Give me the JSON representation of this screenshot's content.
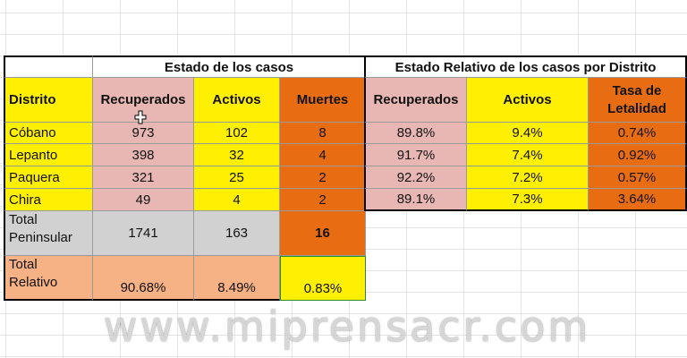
{
  "headers": {
    "group_left": "Estado de los casos",
    "group_right": "Estado Relativo de los casos por Distrito",
    "distrito": "Distrito",
    "recuperados": "Recuperados",
    "activos": "Activos",
    "muertes": "Muertes",
    "recuperados_rel": "Recuperados",
    "activos_rel": "Activos",
    "tasa_line1": "Tasa de",
    "tasa_line2": "Letalidad"
  },
  "rows": [
    {
      "distrito": "Cóbano",
      "recuperados": "973",
      "activos": "102",
      "muertes": "8",
      "rec_rel": "89.8%",
      "act_rel": "9.4%",
      "tasa": "0.74%"
    },
    {
      "distrito": "Lepanto",
      "recuperados": "398",
      "activos": "32",
      "muertes": "4",
      "rec_rel": "91.7%",
      "act_rel": "7.4%",
      "tasa": "0.92%"
    },
    {
      "distrito": "Paquera",
      "recuperados": "321",
      "activos": "25",
      "muertes": "2",
      "rec_rel": "92.2%",
      "act_rel": "7.2%",
      "tasa": "0.57%"
    },
    {
      "distrito": "Chira",
      "recuperados": "49",
      "activos": "4",
      "muertes": "2",
      "rec_rel": "89.1%",
      "act_rel": "7.3%",
      "tasa": "3.64%"
    }
  ],
  "total_peninsular": {
    "label_line1": "Total",
    "label_line2": "Peninsular",
    "recuperados": "1741",
    "activos": "163",
    "muertes": "16"
  },
  "total_relativo": {
    "label_line1": "Total",
    "label_line2": "Relativo",
    "recuperados": "90.68%",
    "activos": "8.49%",
    "muertes": "0.83%"
  },
  "watermark": "www.miprensacr.com",
  "colors": {
    "pink": "#e8b7b4",
    "yellow": "#ffef00",
    "orange": "#e86d12",
    "grey": "#d1d1d1",
    "peach": "#f6b184"
  }
}
